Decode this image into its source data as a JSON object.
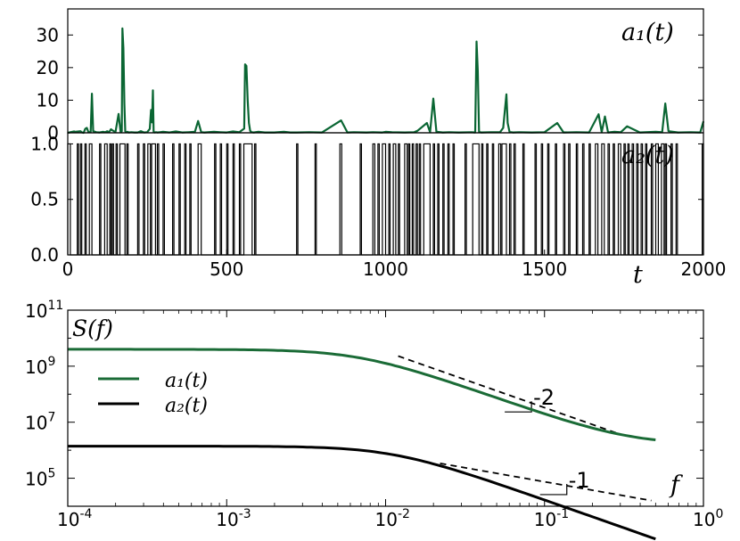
{
  "chart_data": [
    {
      "type": "line",
      "panel": "top",
      "series_label": "a₁(t)",
      "color": "#0a6633",
      "ylim": [
        0,
        38
      ],
      "yticks": [
        0,
        10,
        20,
        30
      ],
      "ytick_labels": [
        "0",
        "10",
        "20",
        "30"
      ],
      "x": [
        0,
        20,
        24,
        40,
        45,
        50,
        55,
        60,
        65,
        72,
        76,
        80,
        90,
        100,
        110,
        118,
        124,
        130,
        136,
        140,
        150,
        160,
        166,
        168,
        170,
        172,
        175,
        178,
        181,
        184,
        188,
        192,
        200,
        210,
        220,
        230,
        240,
        250,
        258,
        262,
        265,
        268,
        270,
        274,
        278,
        282,
        290,
        300,
        320,
        340,
        360,
        380,
        400,
        410,
        420,
        430,
        460,
        480,
        500,
        520,
        540,
        555,
        558,
        562,
        566,
        570,
        574,
        578,
        585,
        600,
        620,
        650,
        680,
        700,
        720,
        760,
        800,
        860,
        880,
        900,
        940,
        960,
        990,
        1000,
        1020,
        1060,
        1090,
        1100,
        1130,
        1140,
        1150,
        1160,
        1180,
        1200,
        1230,
        1270,
        1282,
        1286,
        1290,
        1294,
        1300,
        1330,
        1360,
        1370,
        1380,
        1384,
        1390,
        1400,
        1420,
        1460,
        1500,
        1540,
        1560,
        1600,
        1640,
        1670,
        1680,
        1690,
        1700,
        1720,
        1740,
        1760,
        1800,
        1850,
        1870,
        1880,
        1890,
        1920,
        1960,
        1990,
        2000
      ],
      "values": [
        0,
        0.4,
        0.3,
        0.5,
        0.1,
        0,
        1.2,
        1.5,
        0.2,
        0.3,
        12,
        0.5,
        0.2,
        0.1,
        0.3,
        0.2,
        0.5,
        0.2,
        1.1,
        0.8,
        0.2,
        5.8,
        0.3,
        0.2,
        0.5,
        32,
        26,
        9,
        0.4,
        0.2,
        0.3,
        0.1,
        0.2,
        0.1,
        0.1,
        0.5,
        0.1,
        0.2,
        1.2,
        7,
        3.2,
        13,
        0.3,
        0.1,
        0.2,
        0.1,
        0.2,
        0.3,
        0.1,
        0.4,
        0.1,
        0.2,
        0.3,
        3.6,
        0.2,
        0.1,
        0.3,
        0.2,
        0.1,
        0.4,
        0.2,
        1.3,
        21,
        20.5,
        10,
        3,
        0.6,
        0.2,
        0.1,
        0.3,
        0.1,
        0.1,
        0.3,
        0.1,
        0.1,
        0.2,
        0.1,
        3.8,
        0.1,
        0.2,
        0.1,
        0.2,
        0.1,
        0.3,
        0.2,
        0.1,
        0.2,
        0.6,
        3,
        0.2,
        10.5,
        0.3,
        0.1,
        0.2,
        0.1,
        0.2,
        0.1,
        28,
        19,
        0.3,
        0.1,
        0.2,
        0.2,
        1.5,
        11.8,
        3,
        0.3,
        0.1,
        0.2,
        0.1,
        0.2,
        3,
        0.1,
        0.2,
        0.1,
        5.7,
        0.2,
        5,
        0.1,
        0.3,
        0.2,
        2,
        0.1,
        0.3,
        0.2,
        9,
        0.5,
        0.1,
        0.2,
        0.1,
        3.5
      ]
    },
    {
      "type": "line",
      "panel": "middle",
      "series_label": "a₂(t)",
      "color": "#000000",
      "ylim": [
        0,
        1.1
      ],
      "yticks": [
        0,
        0.5,
        1.0
      ],
      "ytick_labels": [
        "0.0",
        "0.5",
        "1.0"
      ],
      "xlabel": "t",
      "xlim": [
        0,
        2000
      ],
      "xticks": [
        0,
        500,
        1000,
        1500,
        2000
      ],
      "xtick_labels": [
        "0",
        "500",
        "1000",
        "1500",
        "2000"
      ],
      "pulses": [
        [
          0,
          8
        ],
        [
          30,
          34
        ],
        [
          40,
          44
        ],
        [
          54,
          58
        ],
        [
          68,
          76
        ],
        [
          100,
          104
        ],
        [
          116,
          124
        ],
        [
          132,
          136
        ],
        [
          140,
          144
        ],
        [
          152,
          156
        ],
        [
          164,
          180
        ],
        [
          186,
          190
        ],
        [
          220,
          224
        ],
        [
          238,
          242
        ],
        [
          252,
          260
        ],
        [
          264,
          276
        ],
        [
          282,
          286
        ],
        [
          300,
          304
        ],
        [
          330,
          334
        ],
        [
          350,
          354
        ],
        [
          368,
          372
        ],
        [
          384,
          388
        ],
        [
          410,
          420
        ],
        [
          462,
          466
        ],
        [
          480,
          484
        ],
        [
          500,
          504
        ],
        [
          520,
          524
        ],
        [
          540,
          544
        ],
        [
          554,
          580
        ],
        [
          588,
          592
        ],
        [
          720,
          724
        ],
        [
          778,
          782
        ],
        [
          856,
          862
        ],
        [
          920,
          924
        ],
        [
          960,
          966
        ],
        [
          976,
          980
        ],
        [
          990,
          1000
        ],
        [
          1010,
          1014
        ],
        [
          1024,
          1032
        ],
        [
          1040,
          1044
        ],
        [
          1060,
          1068
        ],
        [
          1072,
          1076
        ],
        [
          1084,
          1088
        ],
        [
          1096,
          1100
        ],
        [
          1106,
          1110
        ],
        [
          1120,
          1140
        ],
        [
          1150,
          1154
        ],
        [
          1164,
          1168
        ],
        [
          1180,
          1184
        ],
        [
          1196,
          1200
        ],
        [
          1212,
          1216
        ],
        [
          1250,
          1254
        ],
        [
          1274,
          1294
        ],
        [
          1302,
          1306
        ],
        [
          1318,
          1322
        ],
        [
          1336,
          1340
        ],
        [
          1356,
          1362
        ],
        [
          1366,
          1380
        ],
        [
          1390,
          1394
        ],
        [
          1404,
          1408
        ],
        [
          1432,
          1436
        ],
        [
          1470,
          1474
        ],
        [
          1490,
          1494
        ],
        [
          1510,
          1514
        ],
        [
          1534,
          1538
        ],
        [
          1560,
          1564
        ],
        [
          1576,
          1580
        ],
        [
          1600,
          1604
        ],
        [
          1620,
          1624
        ],
        [
          1640,
          1644
        ],
        [
          1660,
          1668
        ],
        [
          1680,
          1688
        ],
        [
          1700,
          1704
        ],
        [
          1716,
          1720
        ],
        [
          1732,
          1740
        ],
        [
          1750,
          1754
        ],
        [
          1762,
          1766
        ],
        [
          1776,
          1780
        ],
        [
          1790,
          1794
        ],
        [
          1804,
          1808
        ],
        [
          1818,
          1822
        ],
        [
          1836,
          1840
        ],
        [
          1850,
          1858
        ],
        [
          1868,
          1876
        ],
        [
          1880,
          1884
        ],
        [
          1898,
          1902
        ],
        [
          1914,
          1918
        ],
        [
          1996,
          2000
        ]
      ]
    },
    {
      "type": "line",
      "panel": "bottom",
      "xscale": "log",
      "yscale": "log",
      "ylabel": "S(f)",
      "xlabel": "f",
      "xlim": [
        0.0001,
        1
      ],
      "ylim": [
        10000,
        100000000000
      ],
      "xtick_labels": [
        [
          "10",
          "-4"
        ],
        [
          "10",
          "-3"
        ],
        [
          "10",
          "-2"
        ],
        [
          "10",
          "-1"
        ],
        [
          "10",
          "0"
        ]
      ],
      "ytick_labels": [
        [
          "10",
          "5"
        ],
        [
          "10",
          "7"
        ],
        [
          "10",
          "9"
        ],
        [
          "10",
          "11"
        ]
      ],
      "legend": [
        "a₁(t)",
        "a₂(t)"
      ],
      "legend_location": "center-left",
      "series": [
        {
          "name": "a₁(t)",
          "color": "#1a6b36",
          "fc": 0.0068,
          "plateau": 4000000000,
          "floor": 1600000,
          "fmax": 0.5
        },
        {
          "name": "a₂(t)",
          "color": "#000000",
          "fc": 0.011,
          "plateau": 1400000,
          "floor": 0,
          "fmax": 0.5
        }
      ],
      "guides": [
        {
          "slope_label": "-2",
          "f_start": 0.012,
          "f_end": 0.3,
          "s_start": 2300000000
        },
        {
          "slope_label": "-1",
          "f_start": 0.022,
          "f_end": 0.47,
          "s_start": 340000
        }
      ]
    }
  ]
}
